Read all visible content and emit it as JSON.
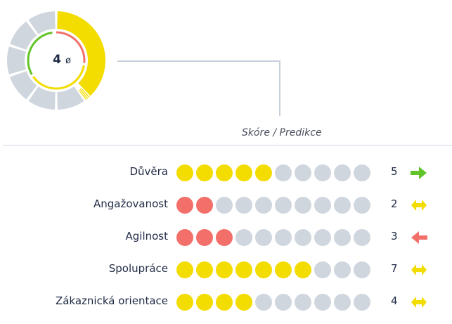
{
  "summary": {
    "value": "4",
    "symbol": "ø",
    "ring_fill_fraction": 0.4
  },
  "score_caption": "Skóre / Predikce",
  "rows": [
    {
      "label": "Důvěra",
      "score": "5",
      "filled": 5,
      "fill_color": "yellow",
      "trend": "up-icon",
      "trend_color": "#63c42a"
    },
    {
      "label": "Angažovanost",
      "score": "2",
      "filled": 2,
      "fill_color": "red",
      "trend": "neutral-icon",
      "trend_color": "#f3dc00"
    },
    {
      "label": "Agilnost",
      "score": "3",
      "filled": 3,
      "fill_color": "red",
      "trend": "down-icon",
      "trend_color": "#f26f6a"
    },
    {
      "label": "Spolupráce",
      "score": "7",
      "filled": 7,
      "fill_color": "yellow",
      "trend": "neutral-icon",
      "trend_color": "#f3dc00"
    },
    {
      "label": "Zákaznická orientace",
      "score": "4",
      "filled": 4,
      "fill_color": "yellow",
      "trend": "neutral-icon",
      "trend_color": "#f3dc00"
    }
  ],
  "max_dots": 10,
  "colors": {
    "yellow": "#f3dc00",
    "red": "#f26f6a",
    "green": "#63c42a",
    "gray": "#cfd6de"
  }
}
